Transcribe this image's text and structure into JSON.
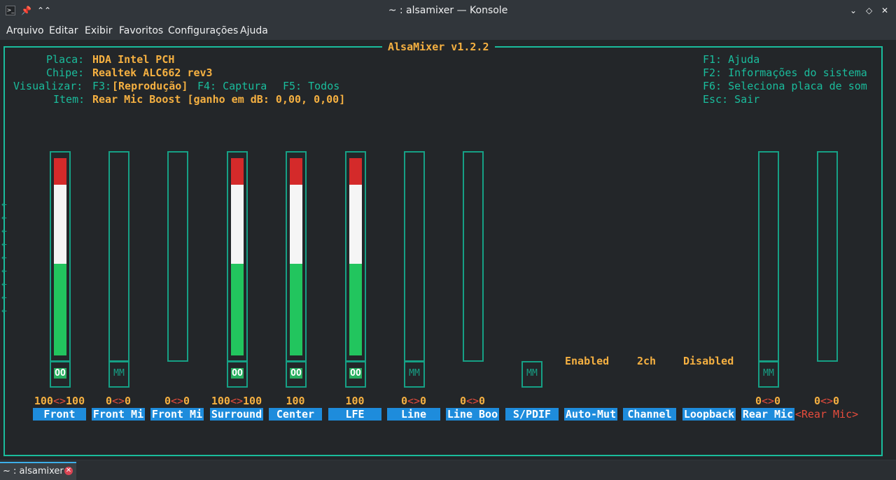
{
  "window": {
    "title": "~ : alsamixer — Konsole",
    "app_icon": ">_",
    "pin_icon": "📌",
    "shade_icon": "⌃⌃",
    "minimize_icon": "⌄",
    "maximize_icon": "◇",
    "close_icon": "✕"
  },
  "menu": [
    "Arquivo",
    "Editar",
    "Exibir",
    "Favoritos",
    "Configurações",
    "Ajuda"
  ],
  "alsa": {
    "title": "AlsaMixer v1.2.2",
    "info": {
      "card_label": "Placa:",
      "card_value": "HDA Intel PCH",
      "chip_label": "Chipe:",
      "chip_value": "Realtek ALC662 rev3",
      "view_label": "Visualizar:",
      "view_f3": "F3:",
      "view_playback": "[Reprodução]",
      "view_f4": "F4: Captura",
      "view_f5": "F5: Todos",
      "item_label": "Item:",
      "item_value": "Rear Mic Boost [ganho em dB: 0,00, 0,00]"
    },
    "help": [
      "F1: Ajuda",
      "F2: Informações do sistema",
      "F6: Seleciona placa de som",
      "Esc: Sair"
    ],
    "controls": [
      {
        "name": "Front",
        "value_left": "100",
        "value_sep": "<>",
        "value_right": "100",
        "mute": "OO",
        "level": 1.0
      },
      {
        "name": "Front Mi",
        "value_left": "0",
        "value_sep": "<>",
        "value_right": "0",
        "mute": "MM",
        "level": 0
      },
      {
        "name": "Front Mi",
        "value_left": "0",
        "value_sep": "<>",
        "value_right": "0",
        "mute": "",
        "level": 0
      },
      {
        "name": "Surround",
        "value_left": "100",
        "value_sep": "<>",
        "value_right": "100",
        "mute": "OO",
        "level": 1.0
      },
      {
        "name": "Center",
        "value_left": "100",
        "value_sep": "",
        "value_right": "",
        "mute": "OO",
        "level": 1.0
      },
      {
        "name": "LFE",
        "value_left": "100",
        "value_sep": "",
        "value_right": "",
        "mute": "OO",
        "level": 1.0
      },
      {
        "name": "Line",
        "value_left": "0",
        "value_sep": "<>",
        "value_right": "0",
        "mute": "MM",
        "level": 0
      },
      {
        "name": "Line Boo",
        "value_left": "0",
        "value_sep": "<>",
        "value_right": "0",
        "mute": "",
        "level": 0
      },
      {
        "name": "S/PDIF",
        "value_left": "",
        "value_sep": "",
        "value_right": "",
        "mute": "MM",
        "level": 0
      },
      {
        "name": "Auto-Mut",
        "state": "Enabled"
      },
      {
        "name": "Channel",
        "state": "2ch"
      },
      {
        "name": "Loopback",
        "state": "Disabled"
      },
      {
        "name": "Rear Mic",
        "value_left": "0",
        "value_sep": "<>",
        "value_right": "0",
        "mute": "MM",
        "level": 0
      },
      {
        "name": "<Rear Mic>",
        "value_left": "0",
        "value_sep": "<>",
        "value_right": "0",
        "mute": "",
        "level": 0,
        "selected": true
      }
    ],
    "colors": {
      "red": "#d42a2a",
      "white": "#f5f5f5",
      "green": "#27ae60",
      "frame": "#16a085"
    }
  },
  "tab": {
    "label": "~ : alsamixer",
    "close_icon": "✕"
  }
}
